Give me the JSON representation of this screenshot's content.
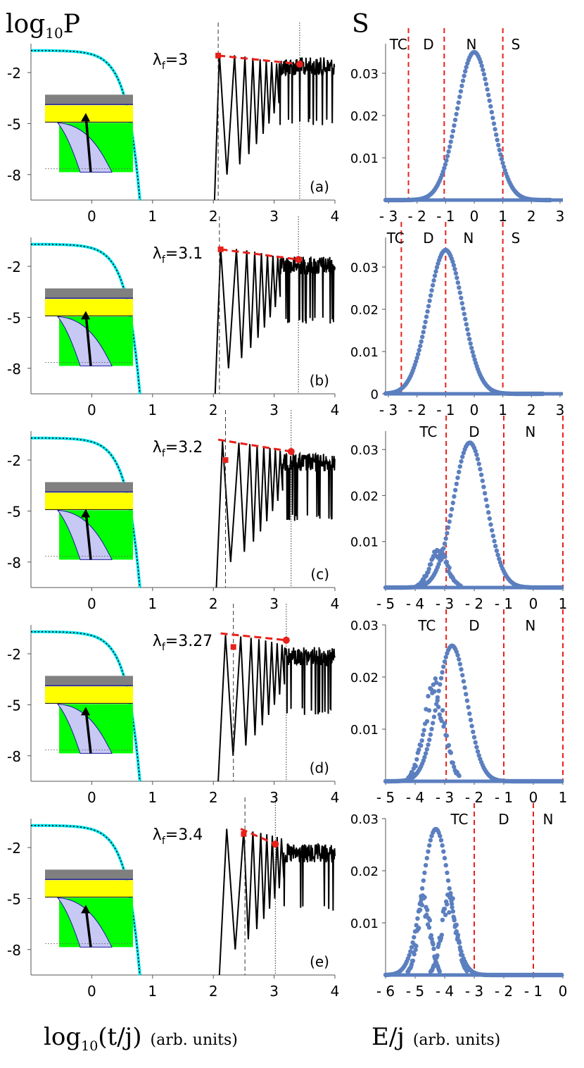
{
  "figure": {
    "left_title_main": "log",
    "left_title_sub": "10",
    "left_title_var": "P",
    "right_title": "S",
    "left_xlabel_main": "log",
    "left_xlabel_sub": "10",
    "left_xlabel_var": "(t/j)",
    "left_xlabel_units": "(arb.  units)",
    "right_xlabel_var": "E/j",
    "right_xlabel_units": "(arb.  units)"
  },
  "colors": {
    "axis": "#555555",
    "cyan": "#00e5ee",
    "red": "#e8201a",
    "blue_points": "#5b7fbf",
    "gray_band": "#808080",
    "yellow_band": "#ffff00",
    "green_band": "#00ff00",
    "lavender": "#c8c8f5",
    "inset_line": "#1a1aa0"
  },
  "chart_data": [
    {
      "panel": "(a)",
      "type": "line",
      "lambda_symbol": "λ",
      "lambda_sub": "f",
      "lambda_value": "=3",
      "xlim": [
        -1,
        4
      ],
      "ylim": [
        -9.5,
        -0.3
      ],
      "xticks": [
        0,
        1,
        2,
        3,
        4
      ],
      "xtick_labels": [
        "0",
        "1",
        "2",
        "3",
        "4"
      ],
      "yticks": [
        -2,
        -5,
        -8
      ],
      "ytick_labels": [
        "-2",
        "-5",
        "-8"
      ],
      "cyan_curve": {
        "log_p0": -0.7,
        "decay_rate": 2.3,
        "power": 2
      },
      "revival": {
        "start": 2.02,
        "peaks": [
          2.1,
          2.35,
          2.52,
          2.65,
          2.77,
          2.87,
          2.96,
          3.04
        ],
        "floor": -1.5
      },
      "dashed_vline": 2.08,
      "dotted_vline": 3.42,
      "red_square": [
        2.08,
        -1.0
      ],
      "red_circle": [
        3.42,
        -1.5
      ],
      "spectrum": {
        "xlim": [
          -3.1,
          3.1
        ],
        "ylim": [
          0,
          0.037
        ],
        "xticks": [
          -3,
          -2,
          -1,
          0,
          1,
          2,
          3
        ],
        "xtick_labels": [
          "- 3",
          "- 2",
          "- 1",
          "0",
          "1",
          "2",
          "3"
        ],
        "yticks": [
          0.01,
          0.02,
          0.03
        ],
        "ytick_labels": [
          "0.01",
          "0.02",
          "0.03"
        ],
        "phase_lines": [
          -2.3,
          -1.05,
          1.0
        ],
        "phase_labels": [
          {
            "text": "TC",
            "x": -2.65
          },
          {
            "text": "D",
            "x": -1.6
          },
          {
            "text": "N",
            "x": -0.1
          },
          {
            "text": "S",
            "x": 1.45
          }
        ],
        "gaussian": {
          "center": 0.0,
          "amplitude": 0.035,
          "sigma": 0.6
        },
        "range": [
          -3.1,
          2.7
        ],
        "n_points": 150,
        "extras": []
      }
    },
    {
      "panel": "(b)",
      "type": "line",
      "lambda_symbol": "λ",
      "lambda_sub": "f",
      "lambda_value": "=3.1",
      "xlim": [
        -1,
        4
      ],
      "ylim": [
        -9.5,
        -0.3
      ],
      "xticks": [
        0,
        1,
        2,
        3,
        4
      ],
      "xtick_labels": [
        "0",
        "1",
        "2",
        "3",
        "4"
      ],
      "yticks": [
        -2,
        -5,
        -8
      ],
      "ytick_labels": [
        "-2",
        "-5",
        "-8"
      ],
      "cyan_curve": {
        "log_p0": -0.7,
        "decay_rate": 2.3,
        "power": 2
      },
      "revival": {
        "start": 2.03,
        "peaks": [
          2.12,
          2.38,
          2.55,
          2.68,
          2.79,
          2.89,
          2.98,
          3.06
        ],
        "floor": -1.8
      },
      "dashed_vline": 2.1,
      "dotted_vline": 3.4,
      "red_square": [
        2.12,
        -1.0
      ],
      "red_circle": [
        3.4,
        -1.6
      ],
      "spectrum": {
        "xlim": [
          -3.1,
          3.1
        ],
        "ylim": [
          0,
          0.037
        ],
        "xticks": [
          -3,
          -2,
          -1,
          0,
          1,
          2,
          3
        ],
        "xtick_labels": [
          "- 3",
          "- 2",
          "- 1",
          "0",
          "1",
          "2",
          "3"
        ],
        "yticks": [
          0,
          0.01,
          0.02,
          0.03
        ],
        "ytick_labels": [
          "0",
          "0.01",
          "0.02",
          "0.03"
        ],
        "phase_lines": [
          -2.55,
          -1.0,
          1.0
        ],
        "phase_labels": [
          {
            "text": "TC",
            "x": -2.75
          },
          {
            "text": "D",
            "x": -1.6
          },
          {
            "text": "N",
            "x": -0.2
          },
          {
            "text": "S",
            "x": 1.45
          }
        ],
        "gaussian": {
          "center": -1.0,
          "amplitude": 0.034,
          "sigma": 0.6
        },
        "range": [
          -3.1,
          2.4
        ],
        "n_points": 150,
        "extras": []
      }
    },
    {
      "panel": "(c)",
      "type": "line",
      "lambda_symbol": "λ",
      "lambda_sub": "f",
      "lambda_value": "=3.2",
      "xlim": [
        -1,
        4
      ],
      "ylim": [
        -9.5,
        -0.3
      ],
      "xticks": [
        0,
        1,
        2,
        3,
        4
      ],
      "xtick_labels": [
        "0",
        "1",
        "2",
        "3",
        "4"
      ],
      "yticks": [
        -2,
        -5,
        -8
      ],
      "ytick_labels": [
        "-2",
        "-5",
        "-8"
      ],
      "cyan_curve": {
        "log_p0": -0.7,
        "decay_rate": 2.3,
        "power": 2
      },
      "revival": {
        "start": 2.05,
        "peaks": [
          2.15,
          2.42,
          2.6,
          2.72,
          2.83,
          2.93,
          3.02,
          3.1
        ],
        "floor": -2.0
      },
      "dashed_vline": 2.2,
      "dotted_vline": 3.28,
      "red_square": [
        2.2,
        -2.0
      ],
      "red_circle": [
        3.28,
        -1.5
      ],
      "red_dash_start": [
        2.08,
        -0.8
      ],
      "spectrum": {
        "xlim": [
          -5,
          1
        ],
        "ylim": [
          0,
          0.034
        ],
        "xticks": [
          -5,
          -4,
          -3,
          -2,
          -1,
          0,
          1
        ],
        "xtick_labels": [
          "- 5",
          "- 4",
          "- 3",
          "- 2",
          "- 1",
          "0",
          "1"
        ],
        "yticks": [
          0.01,
          0.02,
          0.03
        ],
        "ytick_labels": [
          "0.01",
          "0.02",
          "0.03"
        ],
        "phase_lines": [
          -2.95,
          -1.0,
          1.0
        ],
        "phase_labels": [
          {
            "text": "TC",
            "x": -3.55
          },
          {
            "text": "D",
            "x": -2.0
          },
          {
            "text": "N",
            "x": -0.1
          }
        ],
        "gaussian": {
          "center": -2.15,
          "amplitude": 0.0315,
          "sigma": 0.55
        },
        "range": [
          -5,
          1
        ],
        "n_points": 150,
        "extras": [
          {
            "center": -3.2,
            "amplitude": 0.009,
            "sigma": 0.3
          }
        ]
      }
    },
    {
      "panel": "(d)",
      "type": "line",
      "lambda_symbol": "λ",
      "lambda_sub": "f",
      "lambda_value": "=3.27",
      "xlim": [
        -1,
        4
      ],
      "ylim": [
        -9.5,
        -0.3
      ],
      "xticks": [
        0,
        1,
        2,
        3,
        4
      ],
      "xtick_labels": [
        "0",
        "1",
        "2",
        "3",
        "4"
      ],
      "yticks": [
        -2,
        -5,
        -8
      ],
      "ytick_labels": [
        "-2",
        "-5",
        "-8"
      ],
      "cyan_curve": {
        "log_p0": -0.7,
        "decay_rate": 2.3,
        "power": 2
      },
      "revival": {
        "start": 2.08,
        "peaks": [
          2.2,
          2.45,
          2.62,
          2.75,
          2.86,
          2.96,
          3.05,
          3.13
        ],
        "floor": -2.0
      },
      "dashed_vline": 2.33,
      "dotted_vline": 3.2,
      "red_square": [
        2.33,
        -1.6
      ],
      "red_circle": [
        3.2,
        -1.2
      ],
      "red_dash_start": [
        2.12,
        -0.8
      ],
      "spectrum": {
        "xlim": [
          -5,
          1
        ],
        "ylim": [
          0,
          0.03
        ],
        "xticks": [
          -5,
          -4,
          -3,
          -2,
          -1,
          0,
          1
        ],
        "xtick_labels": [
          "- 5",
          "- 4",
          "- 3",
          "- 2",
          "- 1",
          "0",
          "1"
        ],
        "yticks": [
          0.01,
          0.02,
          0.03
        ],
        "ytick_labels": [
          "0.01",
          "0.02",
          "0.03"
        ],
        "phase_lines": [
          -2.95,
          -1.0,
          1.0
        ],
        "phase_labels": [
          {
            "text": "TC",
            "x": -3.6
          },
          {
            "text": "D",
            "x": -2.0
          },
          {
            "text": "N",
            "x": -0.1
          }
        ],
        "gaussian": {
          "center": -2.75,
          "amplitude": 0.026,
          "sigma": 0.5
        },
        "range": [
          -5,
          1
        ],
        "n_points": 150,
        "extras": [
          {
            "center": -3.35,
            "amplitude": 0.02,
            "sigma": 0.35
          }
        ]
      }
    },
    {
      "panel": "(e)",
      "type": "line",
      "lambda_symbol": "λ",
      "lambda_sub": "f",
      "lambda_value": "=3.4",
      "xlim": [
        -1,
        4
      ],
      "ylim": [
        -9.5,
        -0.3
      ],
      "xticks": [
        0,
        1,
        2,
        3,
        4
      ],
      "xtick_labels": [
        "0",
        "1",
        "2",
        "3",
        "4"
      ],
      "yticks": [
        -2,
        -5,
        -8
      ],
      "ytick_labels": [
        "-2",
        "-5",
        "-8"
      ],
      "cyan_curve": {
        "log_p0": -0.7,
        "decay_rate": 2.3,
        "power": 2
      },
      "revival": {
        "start": 2.1,
        "peaks": [
          2.22,
          2.5,
          2.65,
          2.78,
          2.88,
          2.97,
          3.05,
          3.12
        ],
        "floor": -2.2
      },
      "dashed_vline": 2.52,
      "dotted_vline": 3.02,
      "red_square": [
        2.5,
        -1.2
      ],
      "red_circle": [
        3.02,
        -1.8
      ],
      "red_dash_start": [
        2.45,
        -0.9
      ],
      "spectrum": {
        "xlim": [
          -6,
          0
        ],
        "ylim": [
          0,
          0.03
        ],
        "xticks": [
          -6,
          -5,
          -4,
          -3,
          -2,
          -1,
          0
        ],
        "xtick_labels": [
          "- 6",
          "- 5",
          "- 4",
          "- 3",
          "- 2",
          "- 1",
          "0"
        ],
        "yticks": [
          0.01,
          0.02,
          0.03
        ],
        "ytick_labels": [
          "0.01",
          "0.02",
          "0.03"
        ],
        "phase_lines": [
          -3.0,
          -1.0
        ],
        "phase_labels": [
          {
            "text": "TC",
            "x": -3.5
          },
          {
            "text": "D",
            "x": -2.0
          },
          {
            "text": "N",
            "x": -0.5
          }
        ],
        "gaussian": {
          "center": -4.3,
          "amplitude": 0.028,
          "sigma": 0.45
        },
        "range": [
          -6,
          0
        ],
        "n_points": 150,
        "extras": [
          {
            "center": -3.85,
            "amplitude": 0.017,
            "sigma": 0.25
          },
          {
            "center": -4.7,
            "amplitude": 0.016,
            "sigma": 0.22
          }
        ]
      }
    }
  ]
}
